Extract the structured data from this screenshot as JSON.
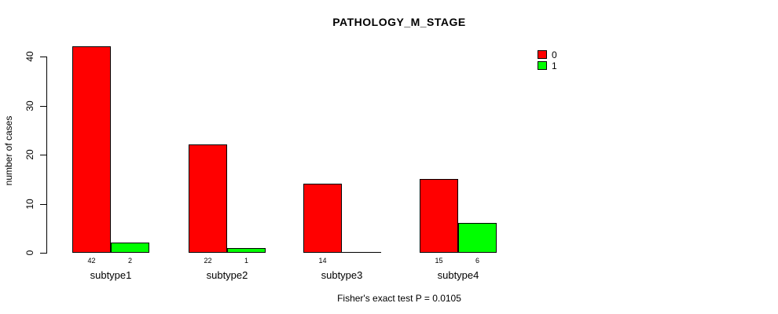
{
  "chart_data": {
    "type": "bar",
    "title": "PATHOLOGY_M_STAGE",
    "ylabel": "number of cases",
    "xlabel": "",
    "footnote": "Fisher's exact test P = 0.0105",
    "categories": [
      "subtype1",
      "subtype2",
      "subtype3",
      "subtype4"
    ],
    "series": [
      {
        "name": "0",
        "color": "#ff0000",
        "values": [
          42,
          22,
          14,
          15
        ]
      },
      {
        "name": "1",
        "color": "#00ff00",
        "values": [
          2,
          1,
          0,
          6
        ]
      }
    ],
    "value_labels": [
      [
        "42",
        "22",
        "14",
        "15"
      ],
      [
        "2",
        "1",
        "",
        "6"
      ]
    ],
    "yticks": [
      0,
      10,
      20,
      30,
      40
    ],
    "ylim": [
      0,
      42
    ],
    "grid": false,
    "legend_position": "topright",
    "bar_border_color": "#000000",
    "background_color": "#ffffff",
    "text_color": "#000000"
  }
}
